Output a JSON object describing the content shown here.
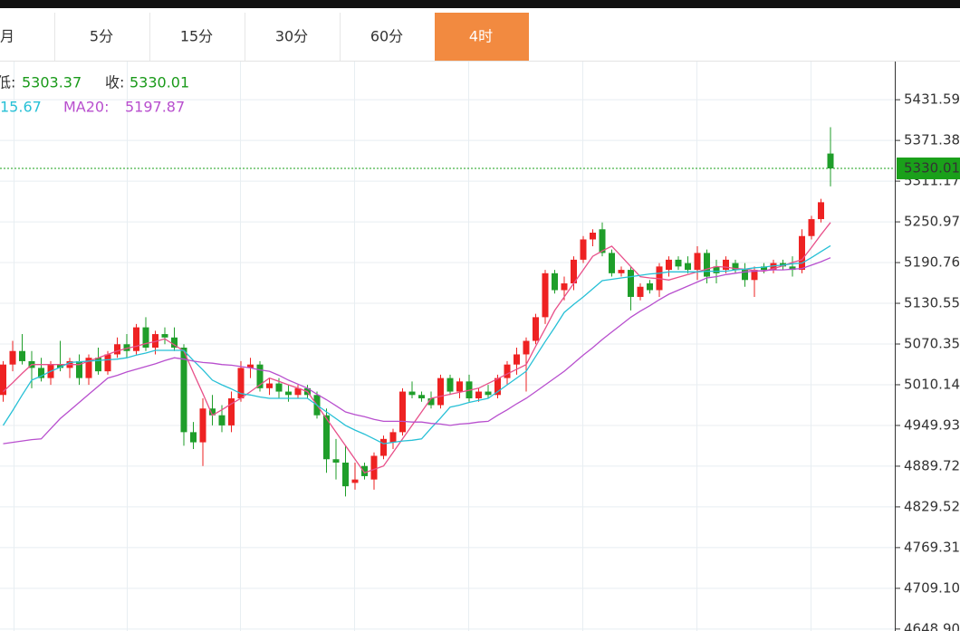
{
  "tabs": [
    "月",
    "5分",
    "15分",
    "30分",
    "60分",
    "4时"
  ],
  "info": {
    "low_label": "低:",
    "close_label": "收:",
    "ma10_fragment": "15.67"
  },
  "chart_data": {
    "type": "candlestick",
    "up_color": "#ee2222",
    "down_color": "#1f9e2a",
    "price_line_color": "#1aa01a",
    "ylim": [
      4646,
      5488
    ],
    "yticks": [
      5431.59,
      5371.38,
      5311.17,
      5250.97,
      5190.76,
      5130.55,
      5070.35,
      5010.14,
      4949.93,
      4889.72,
      4829.52,
      4769.31,
      {
        "value": 4709.1,
        "label": "4709.10"
      },
      {
        "value": 4648.9,
        "label": "4648.90"
      }
    ],
    "grid": true,
    "open": [
      4995,
      5040,
      5060,
      5045,
      5035,
      5020,
      5040,
      5035,
      5045,
      5020,
      5050,
      5030,
      5055,
      5070,
      5060,
      5095,
      5065,
      5085,
      5080,
      5065,
      4940,
      4925,
      4975,
      4965,
      4950,
      4990,
      5035,
      5040,
      5005,
      5012,
      5000,
      4995,
      5005,
      4995,
      4965,
      4900,
      4895,
      4865,
      4890,
      4870,
      4905,
      4925,
      4940,
      5000,
      4995,
      4990,
      4980,
      5020,
      5000,
      5015,
      4990,
      5000,
      4995,
      5020,
      5040,
      5055,
      5075,
      5110,
      5175,
      5150,
      5160,
      5195,
      5225,
      5240,
      5205,
      5175,
      5180,
      5140,
      5160,
      5150,
      5180,
      5195,
      5190,
      5180,
      5205,
      5185,
      5180,
      5190,
      5180,
      5165,
      5185,
      5180,
      5190,
      5185,
      5180,
      5230,
      5255,
      5352
    ],
    "high": [
      5045,
      5075,
      5085,
      5060,
      5050,
      5045,
      5075,
      5050,
      5055,
      5055,
      5065,
      5060,
      5080,
      5085,
      5100,
      5110,
      5090,
      5095,
      5095,
      5070,
      4955,
      4990,
      4995,
      4980,
      5000,
      5045,
      5050,
      5045,
      5020,
      5020,
      5010,
      5010,
      5010,
      5000,
      4975,
      4930,
      4920,
      4895,
      4895,
      4910,
      4935,
      4945,
      5005,
      5015,
      5000,
      5000,
      5025,
      5025,
      5020,
      5025,
      5005,
      5010,
      5025,
      5045,
      5065,
      5080,
      5115,
      5180,
      5180,
      5170,
      5200,
      5230,
      5240,
      5250,
      5210,
      5185,
      5185,
      5160,
      5165,
      5190,
      5200,
      5200,
      5200,
      5215,
      5210,
      5195,
      5200,
      5195,
      5190,
      5185,
      5190,
      5195,
      5195,
      5200,
      5240,
      5260,
      5285,
      5391
    ],
    "low": [
      4985,
      5030,
      5040,
      5005,
      5015,
      5010,
      5030,
      5020,
      5010,
      5010,
      5025,
      5025,
      5050,
      5050,
      5055,
      5060,
      5055,
      5070,
      5060,
      4920,
      4915,
      4890,
      4950,
      4940,
      4940,
      4985,
      5020,
      5000,
      4995,
      4990,
      4985,
      4990,
      4990,
      4960,
      4880,
      4870,
      4845,
      4855,
      4870,
      4855,
      4900,
      4915,
      4935,
      4990,
      4985,
      4975,
      4975,
      4995,
      4990,
      4985,
      4985,
      4990,
      4990,
      5010,
      5025,
      5000,
      5070,
      5100,
      5145,
      5135,
      5150,
      5190,
      5215,
      5200,
      5170,
      5170,
      5120,
      5135,
      5145,
      5140,
      5170,
      5180,
      5175,
      5165,
      5160,
      5160,
      5175,
      5175,
      5155,
      5140,
      5175,
      5175,
      5180,
      5170,
      5175,
      5225,
      5250,
      5303.37
    ],
    "close": [
      5040,
      5060,
      5045,
      5035,
      5020,
      5040,
      5035,
      5045,
      5020,
      5050,
      5030,
      5055,
      5070,
      5060,
      5095,
      5065,
      5085,
      5080,
      5065,
      4940,
      4925,
      4975,
      4965,
      4950,
      4990,
      5035,
      5040,
      5005,
      5012,
      5000,
      4995,
      5005,
      4995,
      4965,
      4900,
      4895,
      4860,
      4870,
      4875,
      4905,
      4930,
      4940,
      5000,
      4995,
      4990,
      4980,
      5020,
      5000,
      5015,
      4990,
      5000,
      4995,
      5020,
      5040,
      5055,
      5075,
      5110,
      5175,
      5150,
      5160,
      5195,
      5225,
      5235,
      5205,
      5175,
      5180,
      5140,
      5155,
      5150,
      5185,
      5195,
      5185,
      5180,
      5205,
      5170,
      5175,
      5195,
      5180,
      5165,
      5180,
      5180,
      5190,
      5185,
      5180,
      5230,
      5255,
      5280,
      5330.01
    ],
    "series": [
      {
        "color": "#e8508a",
        "values": [
          5000,
          5013,
          5027,
          5040,
          5040,
          5040,
          5040,
          5040,
          5040,
          5045,
          5050,
          5055,
          5060,
          5064,
          5067,
          5071,
          5074,
          5078,
          5069,
          5060,
          5028,
          4997,
          4965,
          4973,
          4982,
          4990,
          5000,
          5010,
          5020,
          5015,
          5010,
          5005,
          5000,
          4980,
          4960,
          4940,
          4920,
          4900,
          4880,
          4885,
          4890,
          4910,
          4930,
          4950,
          4970,
          4990,
          4993,
          4996,
          4999,
          5002,
          5005,
          5012,
          5019,
          5026,
          5033,
          5040,
          5067,
          5093,
          5120,
          5140,
          5160,
          5180,
          5200,
          5208,
          5215,
          5200,
          5185,
          5170,
          5168,
          5167,
          5165,
          5169,
          5173,
          5177,
          5181,
          5185,
          5184,
          5182,
          5181,
          5179,
          5178,
          5182,
          5186,
          5191,
          5195,
          5213,
          5232,
          5250
        ]
      },
      {
        "color": "#27c0d6",
        "values": [
          4950,
          4972,
          4995,
          5017,
          5023,
          5030,
          5036,
          5043,
          5044,
          5045,
          5046,
          5047,
          5048,
          5050,
          5054,
          5057,
          5061,
          5061,
          5061,
          5061,
          5046,
          5032,
          5017,
          5010,
          5004,
          4997,
          4995,
          4992,
          4990,
          4990,
          4990,
          4990,
          4990,
          4980,
          4970,
          4960,
          4950,
          4943,
          4937,
          4930,
          4923,
          4925,
          4927,
          4928,
          4930,
          4946,
          4961,
          4977,
          4980,
          4984,
          4987,
          4990,
          5000,
          5010,
          5020,
          5030,
          5052,
          5074,
          5095,
          5117,
          5129,
          5140,
          5152,
          5164,
          5166,
          5168,
          5170,
          5172,
          5174,
          5175,
          5177,
          5177,
          5177,
          5177,
          5178,
          5178,
          5178,
          5180,
          5181,
          5183,
          5184,
          5186,
          5187,
          5189,
          5190,
          5198,
          5207,
          5215.67
        ]
      },
      {
        "name": "MA20:",
        "color": "#b84fce",
        "values": [
          4923,
          4925,
          4927,
          4929,
          4930,
          4945,
          4960,
          4972,
          4984,
          4996,
          5008,
          5020,
          5024,
          5029,
          5033,
          5037,
          5041,
          5046,
          5050,
          5048,
          5045,
          5043,
          5042,
          5040,
          5039,
          5037,
          5035,
          5032,
          5030,
          5024,
          5017,
          5011,
          5005,
          4996,
          4988,
          4979,
          4970,
          4966,
          4963,
          4959,
          4956,
          4956,
          4956,
          4955,
          4955,
          4953,
          4952,
          4950,
          4952,
          4953,
          4955,
          4956,
          4965,
          4973,
          4982,
          4990,
          5000,
          5010,
          5020,
          5030,
          5042,
          5054,
          5065,
          5077,
          5088,
          5099,
          5110,
          5119,
          5127,
          5136,
          5144,
          5150,
          5156,
          5162,
          5168,
          5170,
          5173,
          5175,
          5177,
          5178,
          5179,
          5180,
          5180,
          5181,
          5182,
          5187,
          5192,
          5197.87
        ]
      }
    ]
  }
}
